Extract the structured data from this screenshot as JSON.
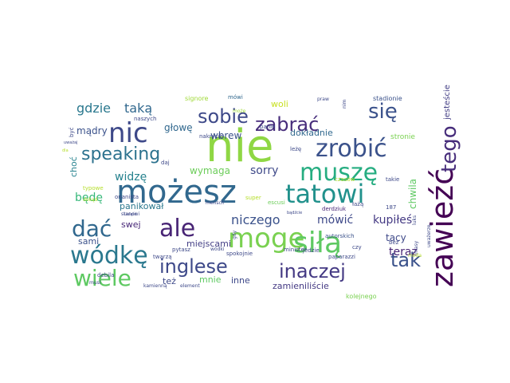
{
  "word_cloud": {
    "words": [
      {
        "text": "nie",
        "color": "#8fd744"
      },
      {
        "text": "możesz",
        "color": "#31688e"
      },
      {
        "text": "zawieźć",
        "color": "#440154"
      },
      {
        "text": "mogę",
        "color": "#7ad151"
      },
      {
        "text": "siłą",
        "color": "#5ec962"
      },
      {
        "text": "muszę",
        "color": "#26ad81"
      },
      {
        "text": "zrobić",
        "color": "#3b528b"
      },
      {
        "text": "nic",
        "color": "#3e4989"
      },
      {
        "text": "tatowi",
        "color": "#21918c"
      },
      {
        "text": "ale",
        "color": "#482475"
      },
      {
        "text": "wódkę",
        "color": "#2a788e"
      },
      {
        "text": "dać",
        "color": "#31688e"
      },
      {
        "text": "wiele",
        "color": "#5ec962"
      },
      {
        "text": "tego",
        "color": "#472d7b"
      },
      {
        "text": "się",
        "color": "#3b528b"
      },
      {
        "text": "zabrać",
        "color": "#472d7b"
      },
      {
        "text": "sobie",
        "color": "#3e4989"
      },
      {
        "text": "tak",
        "color": "#3b528b"
      },
      {
        "text": "inglese",
        "color": "#3e4989"
      },
      {
        "text": "inaczej",
        "color": "#443983"
      },
      {
        "text": "speaking",
        "color": "#2c728e"
      },
      {
        "text": "gdzie",
        "color": "#2a788e"
      },
      {
        "text": "taką",
        "color": "#31688e"
      },
      {
        "text": "niczego",
        "color": "#3b528b"
      },
      {
        "text": "sorry",
        "color": "#3e4989"
      },
      {
        "text": "widzę",
        "color": "#26828e"
      },
      {
        "text": "mówić",
        "color": "#3e4989"
      },
      {
        "text": "kupiłeś",
        "color": "#443983"
      },
      {
        "text": "teraz",
        "color": "#482475"
      },
      {
        "text": "będę",
        "color": "#35b779"
      },
      {
        "text": "mądry",
        "color": "#3b528b"
      },
      {
        "text": "głowę",
        "color": "#31688e"
      },
      {
        "text": "wbrew",
        "color": "#3b528b"
      },
      {
        "text": "woli",
        "color": "#c8e020"
      },
      {
        "text": "dokładnie",
        "color": "#31688e"
      },
      {
        "text": "jesteście",
        "color": "#433e85"
      },
      {
        "text": "chwila",
        "color": "#5ec962"
      },
      {
        "text": "tacy",
        "color": "#3e4989"
      },
      {
        "text": "wymaga",
        "color": "#6ccd5a"
      },
      {
        "text": "panikował",
        "color": "#2a788e"
      },
      {
        "text": "sami",
        "color": "#3b528b"
      },
      {
        "text": "swej",
        "color": "#482878"
      },
      {
        "text": "miejscami",
        "color": "#433e85"
      },
      {
        "text": "też",
        "color": "#3e4989"
      },
      {
        "text": "mnie",
        "color": "#5ec962"
      },
      {
        "text": "inne",
        "color": "#3e4989"
      },
      {
        "text": "zamieniliście",
        "color": "#443983"
      },
      {
        "text": "choć",
        "color": "#26828e"
      },
      {
        "text": "stronie",
        "color": "#7ad151"
      },
      {
        "text": "stadionie",
        "color": "#3b528b"
      },
      {
        "text": "signore",
        "color": "#a0da39"
      },
      {
        "text": "mówi",
        "color": "#31688e"
      },
      {
        "text": "naszych",
        "color": "#3e4989"
      },
      {
        "text": "nakrycie",
        "color": "#3e4989"
      },
      {
        "text": "może",
        "color": "#a0da39"
      },
      {
        "text": "panie",
        "color": "#3e4989"
      },
      {
        "text": "leżę",
        "color": "#3e4989"
      },
      {
        "text": "czasów",
        "color": "#b5de2b"
      },
      {
        "text": "takie",
        "color": "#3e4989"
      },
      {
        "text": "typowe",
        "color": "#b5de2b"
      },
      {
        "text": "onanista",
        "color": "#3e4989"
      },
      {
        "text": "escusi",
        "color": "#6ccd5a"
      },
      {
        "text": "derdziuk",
        "color": "#482878"
      },
      {
        "text": "autorskich",
        "color": "#3b528b"
      },
      {
        "text": "kolejnego",
        "color": "#7ad151"
      },
      {
        "text": "minister",
        "color": "#3e4989"
      },
      {
        "text": "paparazzi",
        "color": "#3e4989"
      },
      {
        "text": "spokojnie",
        "color": "#3e4989"
      },
      {
        "text": "pytasz",
        "color": "#3e4989"
      },
      {
        "text": "twarzą",
        "color": "#3e4989"
      },
      {
        "text": "stanowi",
        "color": "#3e4989"
      },
      {
        "text": "element",
        "color": "#3e4989"
      },
      {
        "text": "kamienną",
        "color": "#3e4989"
      },
      {
        "text": "musi",
        "color": "#3e4989"
      },
      {
        "text": "mensch",
        "color": "#3e4989"
      },
      {
        "text": "super",
        "color": "#b5de2b"
      },
      {
        "text": "jedzie",
        "color": "#3e4989"
      },
      {
        "text": "czy",
        "color": "#3e4989"
      },
      {
        "text": "bez",
        "color": "#3e4989"
      },
      {
        "text": "łażą",
        "color": "#3e4989"
      },
      {
        "text": "luks",
        "color": "#3e4989"
      },
      {
        "text": "dokąd",
        "color": "#b5de2b"
      },
      {
        "text": "debila",
        "color": "#3e4989"
      },
      {
        "text": "daj",
        "color": "#3e4989"
      },
      {
        "text": "wódki",
        "color": "#3e4989"
      },
      {
        "text": "187",
        "color": "#3e4989"
      },
      {
        "text": "moda",
        "color": "#b5de2b"
      },
      {
        "text": "nim",
        "color": "#3e4989"
      },
      {
        "text": "praw",
        "color": "#3e4989"
      },
      {
        "text": "być",
        "color": "#3e4989"
      },
      {
        "text": "uważaj",
        "color": "#3e4989"
      },
      {
        "text": "dla",
        "color": "#b5de2b"
      },
      {
        "text": "masy",
        "color": "#3e4989"
      },
      {
        "text": "usiąść",
        "color": "#3e4989"
      },
      {
        "text": "uważerzę",
        "color": "#3e4989"
      },
      {
        "text": "bądźcie",
        "color": "#3e4989"
      },
      {
        "text": "gdy",
        "color": "#3e4989"
      }
    ]
  }
}
